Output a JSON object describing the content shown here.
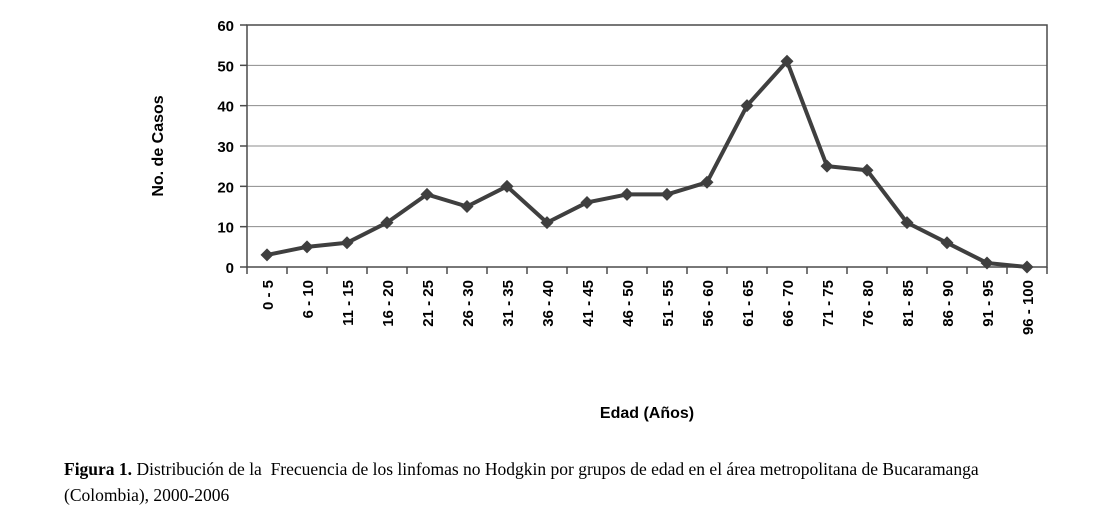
{
  "chart_data": {
    "type": "line",
    "categories": [
      "0 - 5",
      "6 - 10",
      "11 - 15",
      "16 - 20",
      "21 - 25",
      "26 - 30",
      "31 - 35",
      "36 - 40",
      "41 - 45",
      "46 - 50",
      "51 - 55",
      "56 - 60",
      "61 - 65",
      "66 - 70",
      "71 - 75",
      "76 - 80",
      "81 - 85",
      "86 - 90",
      "91 - 95",
      "96 - 100"
    ],
    "values": [
      3,
      5,
      6,
      11,
      18,
      15,
      20,
      11,
      16,
      18,
      18,
      21,
      40,
      51,
      25,
      24,
      11,
      6,
      1,
      0
    ],
    "xlabel": "Edad (Años)",
    "ylabel": "No. de Casos",
    "ylim": [
      0,
      60
    ],
    "ytick_step": 10,
    "grid": true,
    "legend": "none",
    "marker": "diamond",
    "line_color": "#3f3f3f",
    "grid_color": "#8c8c8c",
    "axis_color": "#4a4a4a",
    "text_color": "#000000"
  },
  "caption": {
    "label": "Figura 1.",
    "text": " Distribución de la  Frecuencia de los linfomas no Hodgkin por grupos de edad en el área metropolitana de Bucaramanga (Colombia), 2000-2006"
  }
}
